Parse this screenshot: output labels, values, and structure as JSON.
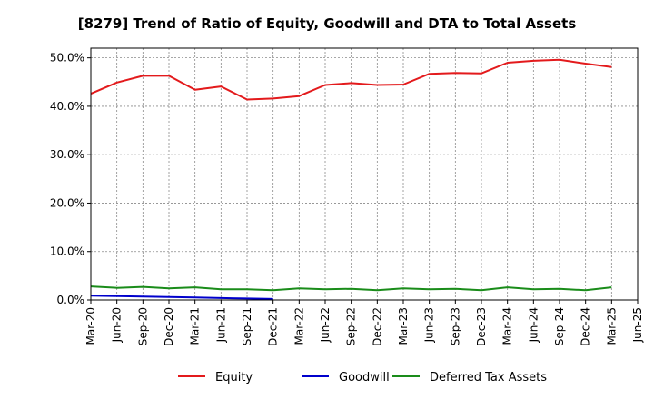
{
  "chart_data": {
    "type": "line",
    "title": "[8279]  Trend of Ratio of Equity, Goodwill and DTA to Total Assets",
    "xlabel": "",
    "ylabel": "",
    "x": [
      "Mar-20",
      "Jun-20",
      "Sep-20",
      "Dec-20",
      "Mar-21",
      "Jun-21",
      "Sep-21",
      "Dec-21",
      "Mar-22",
      "Jun-22",
      "Sep-22",
      "Dec-22",
      "Mar-23",
      "Jun-23",
      "Sep-23",
      "Dec-23",
      "Mar-24",
      "Jun-24",
      "Sep-24",
      "Dec-24",
      "Mar-25",
      "Jun-25"
    ],
    "ylim": [
      0,
      52
    ],
    "yticks": [
      0,
      10,
      20,
      30,
      40,
      50
    ],
    "ytick_labels": [
      "0.0%",
      "10.0%",
      "20.0%",
      "30.0%",
      "40.0%",
      "50.0%"
    ],
    "grid": true,
    "legend_position": "bottom",
    "series": [
      {
        "name": "Equity",
        "color": "#e31a1c",
        "values": [
          42.6,
          44.9,
          46.3,
          46.3,
          43.4,
          44.1,
          41.4,
          41.6,
          42.1,
          44.4,
          44.8,
          44.4,
          44.5,
          46.7,
          46.9,
          46.8,
          49.0,
          49.4,
          49.6,
          48.8,
          48.1,
          null
        ]
      },
      {
        "name": "Goodwill",
        "color": "#0000cc",
        "values": [
          0.9,
          0.8,
          0.7,
          0.6,
          0.5,
          0.4,
          0.3,
          0.2,
          null,
          null,
          null,
          null,
          null,
          null,
          null,
          null,
          null,
          null,
          null,
          null,
          null,
          null
        ]
      },
      {
        "name": "Deferred Tax Assets",
        "color": "#1a8c1a",
        "values": [
          2.8,
          2.5,
          2.7,
          2.4,
          2.6,
          2.2,
          2.2,
          2.0,
          2.4,
          2.2,
          2.3,
          2.0,
          2.4,
          2.2,
          2.3,
          2.0,
          2.6,
          2.2,
          2.3,
          2.0,
          2.6,
          null
        ]
      }
    ]
  }
}
